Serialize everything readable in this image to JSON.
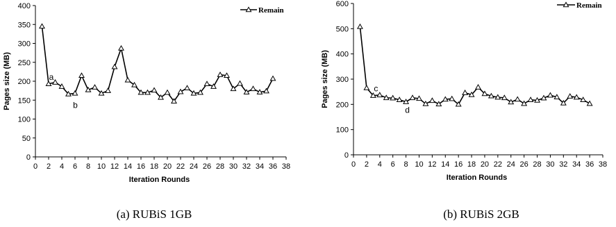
{
  "chart_data": [
    {
      "type": "line",
      "caption": "(a) RUBiS 1GB",
      "xlabel": "Iteration Rounds",
      "ylabel": "Pages size (MB)",
      "xlim": [
        0,
        38
      ],
      "ylim": [
        0,
        400
      ],
      "xticks": [
        "0",
        "2",
        "4",
        "6",
        "8",
        "10",
        "12",
        "14",
        "16",
        "18",
        "20",
        "22",
        "24",
        "26",
        "28",
        "30",
        "32",
        "34",
        "36",
        "38"
      ],
      "yticks": [
        "0",
        "50",
        "100",
        "150",
        "200",
        "250",
        "300",
        "350",
        "400"
      ],
      "legend": "top-right",
      "series": [
        {
          "name": "Remain",
          "x": [
            1,
            2,
            3,
            4,
            5,
            6,
            7,
            8,
            9,
            10,
            11,
            12,
            13,
            14,
            15,
            16,
            17,
            18,
            19,
            20,
            21,
            22,
            23,
            24,
            25,
            26,
            27,
            28,
            29,
            30,
            31,
            32,
            33,
            34,
            35,
            36
          ],
          "values": [
            345,
            193,
            197,
            186,
            166,
            168,
            215,
            177,
            184,
            168,
            175,
            238,
            287,
            203,
            190,
            170,
            170,
            176,
            157,
            170,
            147,
            172,
            182,
            168,
            170,
            193,
            186,
            217,
            215,
            180,
            194,
            171,
            180,
            171,
            174,
            207
          ]
        }
      ],
      "annotations": [
        {
          "text": "a",
          "x": 2,
          "y": 193
        },
        {
          "text": "b",
          "x": 5,
          "y": 166
        }
      ]
    },
    {
      "type": "line",
      "caption": "(b) RUBiS 2GB",
      "xlabel": "Iteration Rounds",
      "ylabel": "Pages size (MB)",
      "xlim": [
        0,
        38
      ],
      "ylim": [
        0,
        600
      ],
      "xticks": [
        "0",
        "2",
        "4",
        "6",
        "8",
        "10",
        "12",
        "14",
        "16",
        "18",
        "20",
        "22",
        "24",
        "26",
        "28",
        "30",
        "32",
        "34",
        "36",
        "38"
      ],
      "yticks": [
        "0",
        "100",
        "200",
        "300",
        "400",
        "500",
        "600"
      ],
      "legend": "top-right",
      "series": [
        {
          "name": "Remain",
          "x": [
            1,
            2,
            3,
            4,
            5,
            6,
            7,
            8,
            9,
            10,
            11,
            12,
            13,
            14,
            15,
            16,
            17,
            18,
            19,
            20,
            21,
            22,
            23,
            24,
            25,
            26,
            27,
            28,
            29,
            30,
            31,
            32,
            33,
            34,
            35,
            36
          ],
          "values": [
            508,
            265,
            235,
            237,
            226,
            225,
            218,
            210,
            226,
            223,
            202,
            215,
            201,
            220,
            222,
            200,
            246,
            238,
            268,
            242,
            233,
            228,
            226,
            209,
            220,
            203,
            218,
            216,
            225,
            236,
            229,
            205,
            232,
            228,
            218,
            203
          ]
        }
      ],
      "annotations": [
        {
          "text": "c",
          "x": 3,
          "y": 235
        },
        {
          "text": "d",
          "x": 8,
          "y": 210
        }
      ]
    }
  ]
}
